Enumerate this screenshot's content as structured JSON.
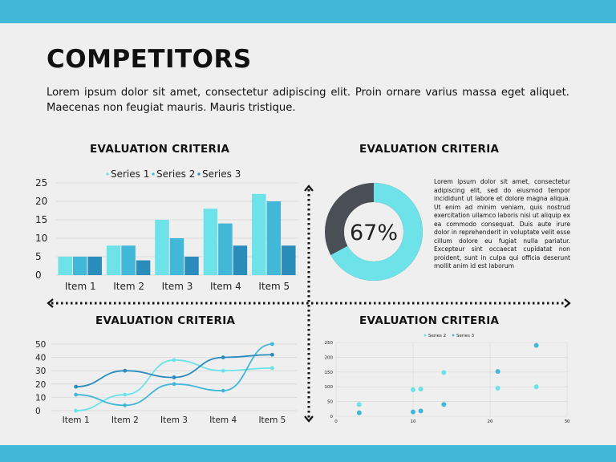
{
  "header": {
    "title": "COMPETITORS"
  },
  "intro": "Lorem ipsum dolor sit amet, consectetur adipiscing elit. Proin ornare varius massa eget aliquet. Maecenas non feugiat mauris. Mauris tristique.",
  "colors": {
    "band": "#42b8d8",
    "series1": "#6de2e8",
    "series2": "#42b8d8",
    "series3": "#2a8cba",
    "donut_track": "#4a4e55"
  },
  "panels": {
    "bar": {
      "title": "EVALUATION CRITERIA"
    },
    "donut": {
      "title": "EVALUATION CRITERIA",
      "text": "Lorem ipsum dolor sit amet, consectetur adipiscing elit, sed do eiusmod tempor incididunt ut labore et dolore magna aliqua. Ut enim ad minim veniam, quis nostrud exercitation ullamco laboris nisi ut aliquip ex ea commodo consequat. Duis aute irure dolor in reprehenderit in voluptate velit esse cillum dolore eu fugiat nulla pariatur. Excepteur sint occaecat cupidatat non proident, sunt in culpa qui officia deserunt mollit anim id est laborum"
    },
    "line": {
      "title": "EVALUATION CRITERIA"
    },
    "scatter": {
      "title": "EVALUATION CRITERIA"
    }
  },
  "chart_data": [
    {
      "type": "bar",
      "categories": [
        "Item 1",
        "Item 2",
        "Item 3",
        "Item 4",
        "Item 5"
      ],
      "series": [
        {
          "name": "Series 1",
          "values": [
            5,
            8,
            15,
            18,
            22
          ]
        },
        {
          "name": "Series 2",
          "values": [
            5,
            8,
            10,
            14,
            20
          ]
        },
        {
          "name": "Series 3",
          "values": [
            5,
            4,
            5,
            8,
            8
          ]
        }
      ],
      "yticks": [
        0,
        5,
        10,
        15,
        20,
        25
      ],
      "ylim": [
        0,
        25
      ],
      "legend": "top",
      "grid": true
    },
    {
      "type": "pie",
      "label": "67%",
      "value": 67
    },
    {
      "type": "line",
      "categories": [
        "Item 1",
        "Item 2",
        "Item 3",
        "Item 4",
        "Item 5"
      ],
      "series": [
        {
          "values": [
            0,
            12,
            38,
            30,
            32
          ]
        },
        {
          "values": [
            12,
            4,
            20,
            15,
            50
          ]
        },
        {
          "values": [
            18,
            30,
            25,
            40,
            42
          ]
        }
      ],
      "yticks": [
        0,
        10,
        20,
        30,
        40,
        50
      ],
      "ylim": [
        0,
        50
      ],
      "grid": true
    },
    {
      "type": "scatter",
      "series": [
        {
          "name": "Series 2",
          "points": [
            [
              3,
              40
            ],
            [
              10,
              90
            ],
            [
              11,
              92
            ],
            [
              14,
              148
            ],
            [
              21,
              95
            ],
            [
              26,
              100
            ]
          ]
        },
        {
          "name": "Series 3",
          "points": [
            [
              3,
              12
            ],
            [
              10,
              15
            ],
            [
              11,
              18
            ],
            [
              14,
              40
            ],
            [
              21,
              152
            ],
            [
              26,
              240
            ]
          ]
        }
      ],
      "xticks": [
        0,
        10,
        20,
        30
      ],
      "yticks": [
        0,
        50,
        100,
        150,
        200,
        250
      ],
      "xlim": [
        0,
        30
      ],
      "ylim": [
        0,
        250
      ],
      "legend": "top",
      "grid": true
    }
  ]
}
